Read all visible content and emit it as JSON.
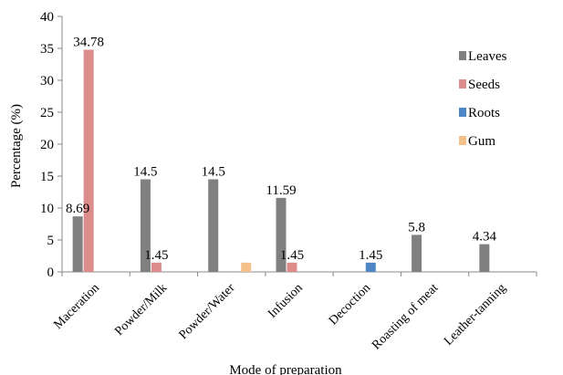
{
  "chart_data": {
    "type": "bar",
    "xlabel": "Mode of preparation",
    "ylabel": "Percentage (%)",
    "ylim": [
      0,
      40
    ],
    "yticks": [
      "0",
      "5",
      "10",
      "15",
      "20",
      "25",
      "30",
      "35",
      "40"
    ],
    "grid": false,
    "legend_position": "top-right",
    "categories": [
      "Maceration",
      "Powder/Milk",
      "Powder/Water",
      "Infusion",
      "Decoction",
      "Roasting of meat",
      "Leather-tanning"
    ],
    "series": [
      {
        "name": "Leaves",
        "color": "#808080",
        "values": [
          8.69,
          14.5,
          14.5,
          11.59,
          null,
          5.8,
          4.34
        ],
        "labels": [
          "8.69",
          "14.5",
          "14.5",
          "11.59",
          "",
          "5.8",
          "4.34"
        ]
      },
      {
        "name": "Seeds",
        "color": "#dd8c8c",
        "values": [
          34.78,
          1.45,
          null,
          1.45,
          null,
          null,
          null
        ],
        "labels": [
          "34.78",
          "1.45",
          "",
          "1.45",
          "",
          "",
          ""
        ]
      },
      {
        "name": "Roots",
        "color": "#4f86c6",
        "values": [
          null,
          null,
          null,
          null,
          1.45,
          null,
          null
        ],
        "labels": [
          "",
          "",
          "",
          "",
          "1.45",
          "",
          ""
        ]
      },
      {
        "name": "Gum",
        "color": "#f3c08a",
        "values": [
          null,
          null,
          1.45,
          null,
          null,
          null,
          null
        ],
        "labels": [
          "",
          "",
          "",
          "",
          "",
          "",
          ""
        ]
      }
    ]
  }
}
